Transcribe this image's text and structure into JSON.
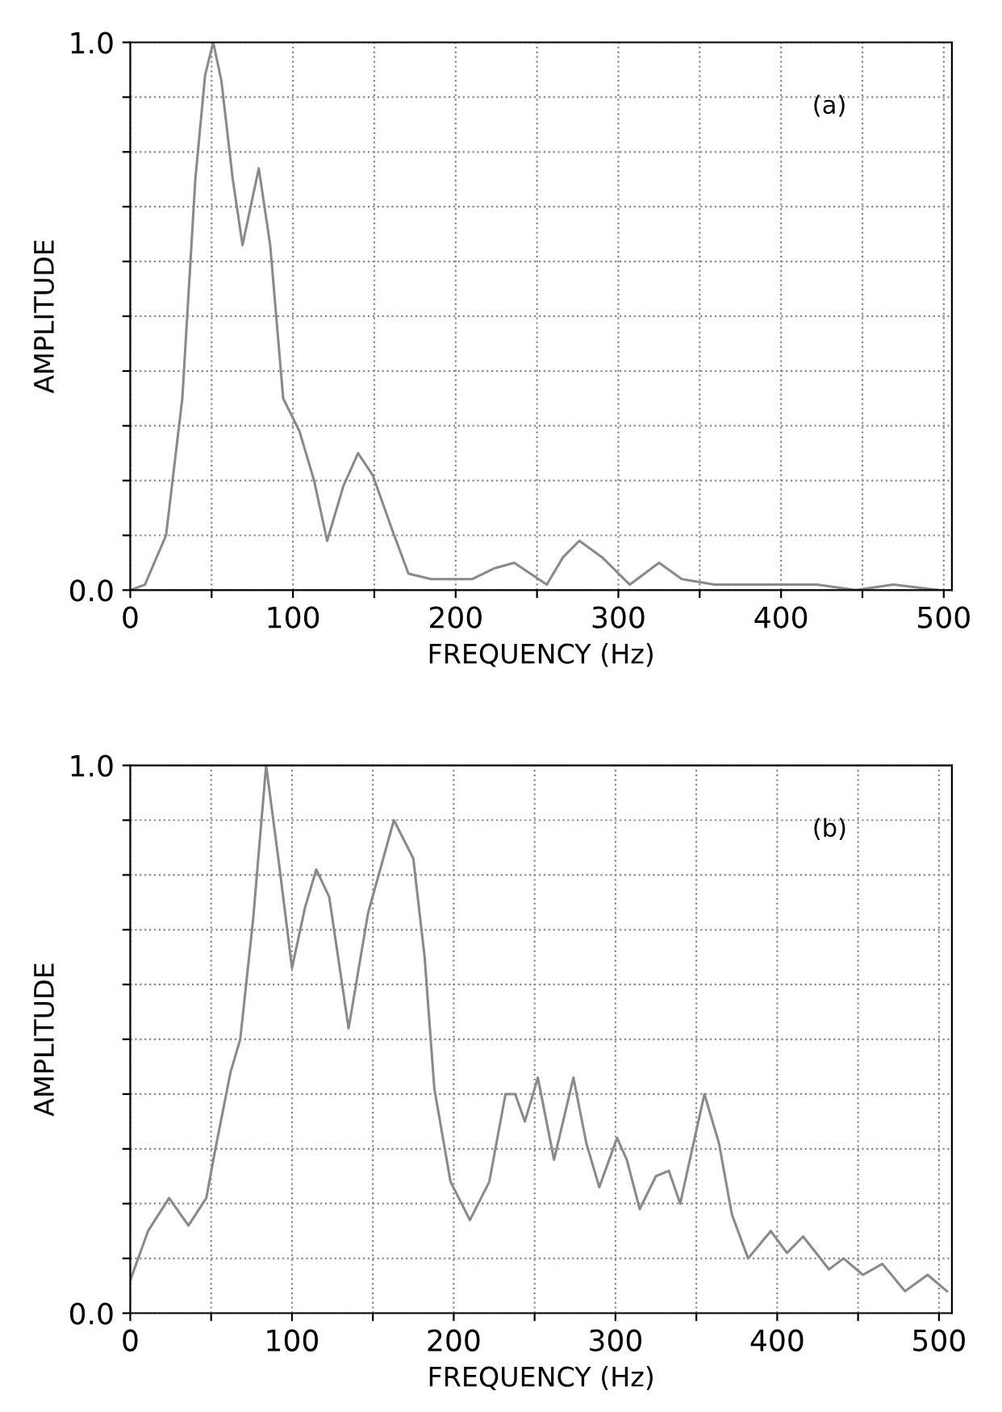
{
  "chart_data": [
    {
      "type": "line",
      "xlabel": "FREQUENCY (Hz)",
      "ylabel": "AMPLITUDE",
      "annotations": [
        "(a)"
      ],
      "grid": true,
      "line_style": "solid",
      "xlim": [
        0,
        505
      ],
      "ylim": [
        0,
        1.0
      ],
      "xticks": [
        0,
        {
          "value": 50,
          "label": null
        },
        100,
        {
          "value": 150,
          "label": null
        },
        200,
        {
          "value": 250,
          "label": null
        },
        300,
        {
          "value": 350,
          "label": null
        },
        400,
        {
          "value": 450,
          "label": null
        },
        500
      ],
      "yticks": [
        {
          "value": 0,
          "label": "0.0"
        },
        {
          "value": 0.1,
          "label": null
        },
        {
          "value": 0.2,
          "label": null
        },
        {
          "value": 0.3,
          "label": null
        },
        {
          "value": 0.4,
          "label": null
        },
        {
          "value": 0.5,
          "label": null
        },
        {
          "value": 0.6,
          "label": null
        },
        {
          "value": 0.7,
          "label": null
        },
        {
          "value": 0.8,
          "label": null
        },
        {
          "value": 0.9,
          "label": null
        },
        {
          "value": 1.0,
          "label": "1.0"
        }
      ],
      "series": [
        {
          "color": "#8a8a8a",
          "x": [
            0,
            9,
            22,
            32,
            40,
            46,
            51,
            56,
            63,
            69,
            79,
            86,
            94,
            104,
            113,
            121,
            131,
            140,
            149,
            161,
            171,
            185,
            210,
            224,
            236,
            246,
            256,
            266,
            276,
            290,
            307,
            325,
            339,
            359,
            383,
            398,
            422,
            446,
            469,
            497
          ],
          "values": [
            0,
            0.01,
            0.1,
            0.35,
            0.75,
            0.94,
            1.0,
            0.93,
            0.75,
            0.63,
            0.77,
            0.63,
            0.35,
            0.29,
            0.2,
            0.09,
            0.19,
            0.25,
            0.21,
            0.11,
            0.03,
            0.02,
            0.02,
            0.04,
            0.05,
            0.03,
            0.01,
            0.06,
            0.09,
            0.06,
            0.01,
            0.05,
            0.02,
            0.01,
            0.01,
            0.01,
            0.01,
            0.0,
            0.01,
            0.0
          ]
        }
      ]
    },
    {
      "type": "line",
      "xlabel": "FREQUENCY (Hz)",
      "ylabel": "AMPLITUDE",
      "annotations": [
        "(b)"
      ],
      "grid": true,
      "line_style": "solid",
      "xlim": [
        0,
        508
      ],
      "ylim": [
        0,
        1.0
      ],
      "xticks": [
        0,
        {
          "value": 50,
          "label": null
        },
        100,
        {
          "value": 150,
          "label": null
        },
        200,
        {
          "value": 250,
          "label": null
        },
        300,
        {
          "value": 350,
          "label": null
        },
        400,
        {
          "value": 450,
          "label": null
        },
        500
      ],
      "yticks": [
        {
          "value": 0,
          "label": "0.0"
        },
        {
          "value": 0.1,
          "label": null
        },
        {
          "value": 0.2,
          "label": null
        },
        {
          "value": 0.3,
          "label": null
        },
        {
          "value": 0.4,
          "label": null
        },
        {
          "value": 0.5,
          "label": null
        },
        {
          "value": 0.6,
          "label": null
        },
        {
          "value": 0.7,
          "label": null
        },
        {
          "value": 0.8,
          "label": null
        },
        {
          "value": 0.9,
          "label": null
        },
        {
          "value": 1.0,
          "label": "1.0"
        }
      ],
      "series": [
        {
          "color": "#8a8a8a",
          "x": [
            0,
            11,
            24,
            36,
            47,
            52,
            62,
            68,
            76,
            84,
            92,
            100,
            108,
            115,
            123,
            135,
            147,
            163,
            175,
            182,
            188,
            198,
            210,
            222,
            232,
            238,
            244,
            252,
            262,
            274,
            282,
            290,
            301,
            307,
            315,
            325,
            333,
            340,
            355,
            364,
            372,
            382,
            396,
            406,
            416,
            432,
            441,
            453,
            465,
            479,
            493,
            505
          ],
          "values": [
            0.06,
            0.15,
            0.21,
            0.16,
            0.21,
            0.29,
            0.44,
            0.5,
            0.72,
            1.0,
            0.82,
            0.63,
            0.74,
            0.81,
            0.76,
            0.52,
            0.73,
            0.9,
            0.83,
            0.65,
            0.41,
            0.24,
            0.17,
            0.24,
            0.4,
            0.4,
            0.35,
            0.43,
            0.28,
            0.43,
            0.31,
            0.23,
            0.32,
            0.28,
            0.19,
            0.25,
            0.26,
            0.2,
            0.4,
            0.31,
            0.18,
            0.1,
            0.15,
            0.11,
            0.14,
            0.08,
            0.1,
            0.07,
            0.09,
            0.04,
            0.07,
            0.04
          ]
        }
      ]
    }
  ]
}
